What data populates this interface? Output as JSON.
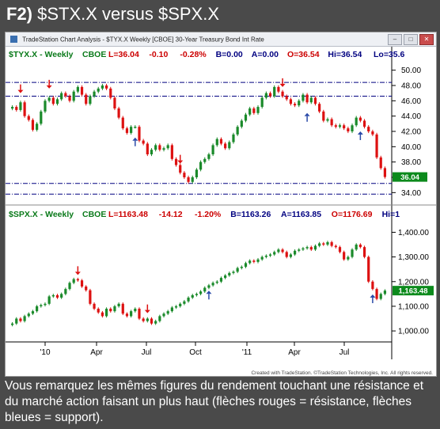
{
  "header": {
    "label": "F2)",
    "title": "$STX.X versus $SPX.X"
  },
  "window": {
    "title": "TradeStation Chart Analysis - $TYX.X Weekly [CBOE] 30-Year Treasury Bond Int Rate"
  },
  "upper_pane": {
    "symbol": "$TYX.X - Weekly",
    "exchange": "CBOE",
    "fields": [
      {
        "text": "L=36.04",
        "color": "#cc0000"
      },
      {
        "text": "-0.10",
        "color": "#cc0000"
      },
      {
        "text": "-0.28%",
        "color": "#cc0000"
      },
      {
        "text": "B=0.00",
        "color": "#000080"
      },
      {
        "text": "A=0.00",
        "color": "#000080"
      },
      {
        "text": "O=36.54",
        "color": "#cc0000"
      },
      {
        "text": "Hi=36.54",
        "color": "#000080"
      },
      {
        "text": "Lo=35.6",
        "color": "#000080"
      }
    ],
    "axis_labels": [
      "50.00",
      "48.00",
      "46.00",
      "44.00",
      "42.00",
      "40.00",
      "38.00",
      "36.00",
      "34.00"
    ],
    "last_price": "36.04"
  },
  "lower_pane": {
    "symbol": "$SPX.X - Weekly",
    "exchange": "CBOE",
    "fields": [
      {
        "text": "L=1163.48",
        "color": "#cc0000"
      },
      {
        "text": "-14.12",
        "color": "#cc0000"
      },
      {
        "text": "-1.20%",
        "color": "#cc0000"
      },
      {
        "text": "B=1163.26",
        "color": "#000080"
      },
      {
        "text": "A=1163.85",
        "color": "#000080"
      },
      {
        "text": "O=1176.69",
        "color": "#cc0000"
      },
      {
        "text": "Hi=1",
        "color": "#000080"
      }
    ],
    "axis_labels": [
      "1,400.00",
      "1,300.00",
      "1,200.00",
      "1,100.00",
      "1,000.00"
    ],
    "last_price": "1,163.48"
  },
  "x_axis_labels": [
    "'10",
    "Apr",
    "Jul",
    "Oct",
    "'11",
    "Apr",
    "Jul"
  ],
  "credit": "Created with TradeStation. ©TradeStation Technologies, Inc. All rights reserved.",
  "caption": "Vous remarquez les mêmes figures du rendement touchant une résistance et du marché action faisant un plus haut (flèches rouges = résistance, flèches bleues = support).",
  "colors": {
    "up": "#1a8a2a",
    "down": "#dd1111",
    "resistance_arrow": "#dd1111",
    "support_arrow": "#2a4aa8",
    "level_line": "#000080",
    "price_tag": "#0c8a1c"
  },
  "chart_data": [
    {
      "type": "candlestick",
      "title": "$TYX.X - Weekly",
      "ylim": [
        33,
        51
      ],
      "x_ticks": [
        "'10",
        "Apr",
        "Jul",
        "Oct",
        "'11",
        "Apr",
        "Jul"
      ],
      "close": [
        45.2,
        44.8,
        45.8,
        44.0,
        43.5,
        42.2,
        43.0,
        44.6,
        46.0,
        46.4,
        45.6,
        46.2,
        47.0,
        46.6,
        46.0,
        47.2,
        47.8,
        46.8,
        45.6,
        46.6,
        47.2,
        47.6,
        48.0,
        47.6,
        46.4,
        45.0,
        43.8,
        42.4,
        41.8,
        42.6,
        42.6,
        40.8,
        40.4,
        39.0,
        39.6,
        40.2,
        39.6,
        39.8,
        40.2,
        38.4,
        37.6,
        36.6,
        36.0,
        35.4,
        36.0,
        37.0,
        38.0,
        38.4,
        39.0,
        40.2,
        41.0,
        40.4,
        39.8,
        40.6,
        41.6,
        42.6,
        43.4,
        44.2,
        45.0,
        44.4,
        45.2,
        46.4,
        47.0,
        46.6,
        47.8,
        47.2,
        46.6,
        46.2,
        45.6,
        45.4,
        46.0,
        46.8,
        45.8,
        46.4,
        45.6,
        44.6,
        43.4,
        43.6,
        42.8,
        42.6,
        42.8,
        42.4,
        42.0,
        42.8,
        43.8,
        43.4,
        42.6,
        42.0,
        41.6,
        38.6,
        37.2,
        36.04
      ],
      "levels": [
        48.4,
        46.6,
        35.2,
        33.8
      ],
      "resistance_arrows_at": [
        2,
        9,
        41,
        66
      ],
      "support_arrows_at": [
        30,
        72,
        85
      ]
    },
    {
      "type": "candlestick",
      "title": "$SPX.X - Weekly",
      "ylim": [
        965,
        1440
      ],
      "x_ticks": [
        "'10",
        "Apr",
        "Jul",
        "Oct",
        "'11",
        "Apr",
        "Jul"
      ],
      "close": [
        1030,
        1050,
        1040,
        1060,
        1070,
        1080,
        1100,
        1105,
        1110,
        1140,
        1145,
        1135,
        1150,
        1170,
        1195,
        1210,
        1205,
        1180,
        1165,
        1110,
        1090,
        1075,
        1060,
        1090,
        1080,
        1100,
        1110,
        1070,
        1060,
        1080,
        1090,
        1050,
        1040,
        1050,
        1030,
        1040,
        1060,
        1070,
        1080,
        1095,
        1100,
        1110,
        1120,
        1135,
        1145,
        1150,
        1160,
        1175,
        1185,
        1195,
        1200,
        1215,
        1225,
        1235,
        1240,
        1255,
        1260,
        1275,
        1285,
        1280,
        1290,
        1300,
        1305,
        1310,
        1320,
        1330,
        1320,
        1300,
        1310,
        1325,
        1330,
        1335,
        1340,
        1330,
        1345,
        1355,
        1350,
        1360,
        1345,
        1340,
        1320,
        1290,
        1300,
        1330,
        1350,
        1340,
        1300,
        1200,
        1170,
        1130,
        1150,
        1163.48
      ],
      "resistance_arrows_at": [
        16,
        33
      ],
      "support_arrows_at": [
        48,
        88
      ]
    }
  ]
}
